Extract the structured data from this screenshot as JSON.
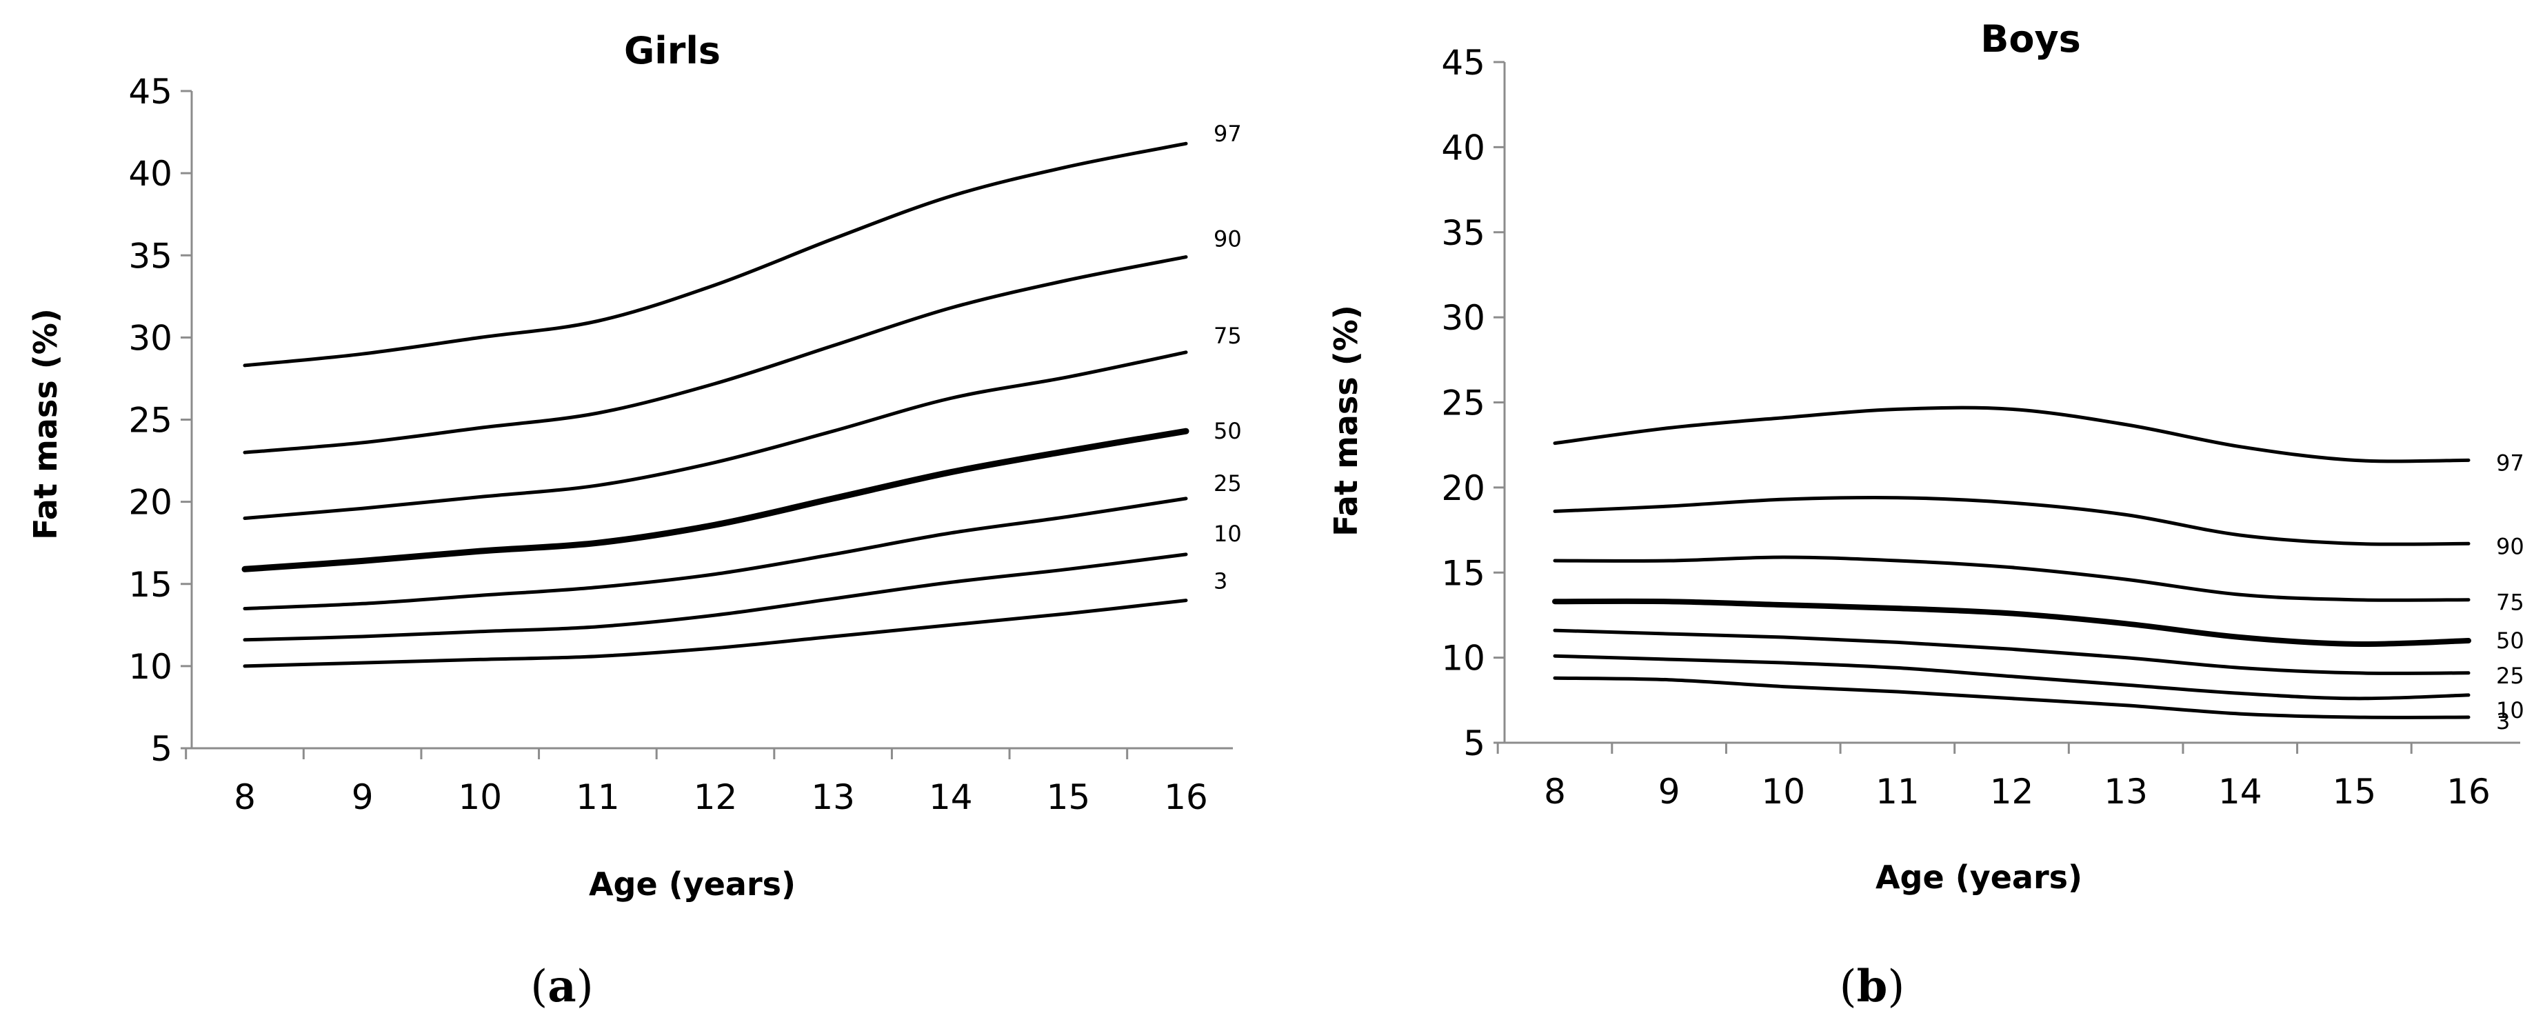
{
  "chart_data": [
    {
      "type": "line",
      "title": "Girls",
      "xlabel": "Age (years)",
      "ylabel": "Fat mass (%)",
      "panel_label": "(a)",
      "x": [
        8,
        9,
        10,
        11,
        12,
        13,
        14,
        15,
        16
      ],
      "xlim": [
        8,
        16
      ],
      "ylim": [
        5,
        45
      ],
      "yticks": [
        5,
        10,
        15,
        20,
        25,
        30,
        35,
        40,
        45
      ],
      "grid": false,
      "series": [
        {
          "name": "97",
          "values": [
            28.3,
            29.0,
            30.0,
            31.0,
            33.2,
            36.0,
            38.6,
            40.4,
            41.8
          ]
        },
        {
          "name": "90",
          "values": [
            23.0,
            23.6,
            24.5,
            25.4,
            27.2,
            29.5,
            31.8,
            33.5,
            34.9
          ]
        },
        {
          "name": "75",
          "values": [
            19.0,
            19.6,
            20.3,
            21.0,
            22.4,
            24.3,
            26.3,
            27.6,
            29.1
          ]
        },
        {
          "name": "50",
          "values": [
            15.9,
            16.4,
            17.0,
            17.5,
            18.6,
            20.2,
            21.8,
            23.1,
            24.3
          ]
        },
        {
          "name": "25",
          "values": [
            13.5,
            13.8,
            14.3,
            14.8,
            15.6,
            16.8,
            18.1,
            19.1,
            20.2
          ]
        },
        {
          "name": "10",
          "values": [
            11.6,
            11.8,
            12.1,
            12.4,
            13.1,
            14.1,
            15.1,
            15.9,
            16.8
          ]
        },
        {
          "name": "3",
          "values": [
            10.0,
            10.2,
            10.4,
            10.6,
            11.1,
            11.8,
            12.5,
            13.2,
            14.0
          ]
        }
      ]
    },
    {
      "type": "line",
      "title": "Boys",
      "xlabel": "Age (years)",
      "ylabel": "Fat mass (%)",
      "panel_label": "(b)",
      "x": [
        8,
        9,
        10,
        11,
        12,
        13,
        14,
        15,
        16
      ],
      "xlim": [
        8,
        16
      ],
      "ylim": [
        5,
        45
      ],
      "yticks": [
        5,
        10,
        15,
        20,
        25,
        30,
        35,
        40,
        45
      ],
      "grid": false,
      "series": [
        {
          "name": "97",
          "values": [
            22.6,
            23.5,
            24.1,
            24.6,
            24.6,
            23.7,
            22.4,
            21.6,
            21.6
          ]
        },
        {
          "name": "90",
          "values": [
            18.6,
            18.9,
            19.3,
            19.4,
            19.1,
            18.4,
            17.2,
            16.7,
            16.7
          ]
        },
        {
          "name": "75",
          "values": [
            15.7,
            15.7,
            15.9,
            15.7,
            15.3,
            14.6,
            13.7,
            13.4,
            13.4
          ]
        },
        {
          "name": "50",
          "values": [
            13.3,
            13.3,
            13.1,
            12.9,
            12.6,
            12.0,
            11.2,
            10.8,
            11.0
          ]
        },
        {
          "name": "25",
          "values": [
            11.6,
            11.4,
            11.2,
            10.9,
            10.5,
            10.0,
            9.4,
            9.1,
            9.1
          ]
        },
        {
          "name": "10",
          "values": [
            10.1,
            9.9,
            9.7,
            9.4,
            8.9,
            8.4,
            7.9,
            7.6,
            7.8
          ]
        },
        {
          "name": "3",
          "values": [
            8.8,
            8.7,
            8.3,
            8.0,
            7.6,
            7.2,
            6.7,
            6.5,
            6.5
          ]
        }
      ]
    }
  ]
}
